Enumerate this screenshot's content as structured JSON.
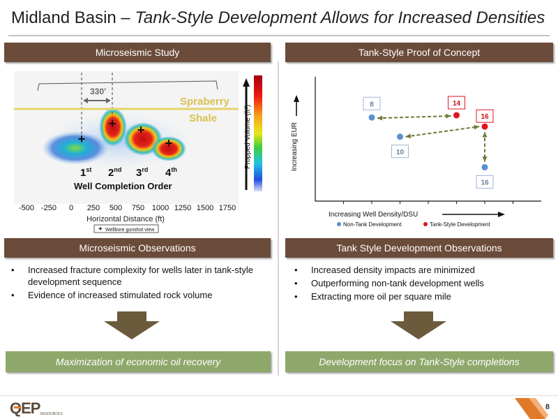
{
  "slide": {
    "title_plain": "Midland Basin – ",
    "title_italic": "Tank-Style Development Allows for Increased Densities",
    "page_number": "8"
  },
  "left": {
    "header": "Microseismic Study",
    "observations_header": "Microseismic Observations",
    "bullets": [
      "Increased fracture complexity for wells later in tank-style development sequence",
      "Evidence of increased stimulated rock volume"
    ],
    "conclusion": "Maximization of economic oil recovery"
  },
  "right": {
    "header": "Tank-Style Proof of Concept",
    "observations_header": "Tank Style Development Observations",
    "bullets": [
      "Increased density impacts are minimized",
      "Outperforming non-tank development wells",
      "Extracting more oil per square mile"
    ],
    "conclusion": "Development focus on Tank-Style completions"
  },
  "microseismic": {
    "spacing_label": "330’",
    "formation_label_1": "Spraberry",
    "formation_label_2": "Shale",
    "order_labels": [
      {
        "num": "1",
        "suffix": "st"
      },
      {
        "num": "2",
        "suffix": "nd"
      },
      {
        "num": "3",
        "suffix": "rd"
      },
      {
        "num": "4",
        "suffix": "th"
      }
    ],
    "order_caption": "Well Completion Order",
    "x_ticks": [
      "-500",
      "-250",
      "0",
      "250",
      "500",
      "750",
      "1000",
      "1250",
      "1500",
      "1750"
    ],
    "x_label": "Horizontal Distance (ft)",
    "legend_label": "Wellbore gunshot view",
    "colorbar_label": "Propped Volume (ft³)",
    "colors": {
      "formation_line": "#e6d36b",
      "formation_text": "#d8c352"
    }
  },
  "chart_data": {
    "type": "scatter",
    "xlabel": "Increasing Well Density/DSU",
    "ylabel": "Increasing EUR",
    "series": [
      {
        "name": "Non-Tank Development",
        "color": "#5b8fd0",
        "points": [
          {
            "label": "8",
            "x": 2,
            "y": 7.4
          },
          {
            "label": "10",
            "x": 3,
            "y": 5.7
          },
          {
            "label": "16",
            "x": 6,
            "y": 3.0
          }
        ]
      },
      {
        "name": "Tank-Style Development",
        "color": "#e0141e",
        "points": [
          {
            "label": "14",
            "x": 5,
            "y": 7.6
          },
          {
            "label": "16",
            "x": 6,
            "y": 6.6
          }
        ]
      }
    ],
    "xlim": [
      0,
      8
    ],
    "ylim": [
      0,
      11
    ]
  },
  "footer": {
    "logo_main": "QEP",
    "logo_sub": "RESOURCES"
  }
}
